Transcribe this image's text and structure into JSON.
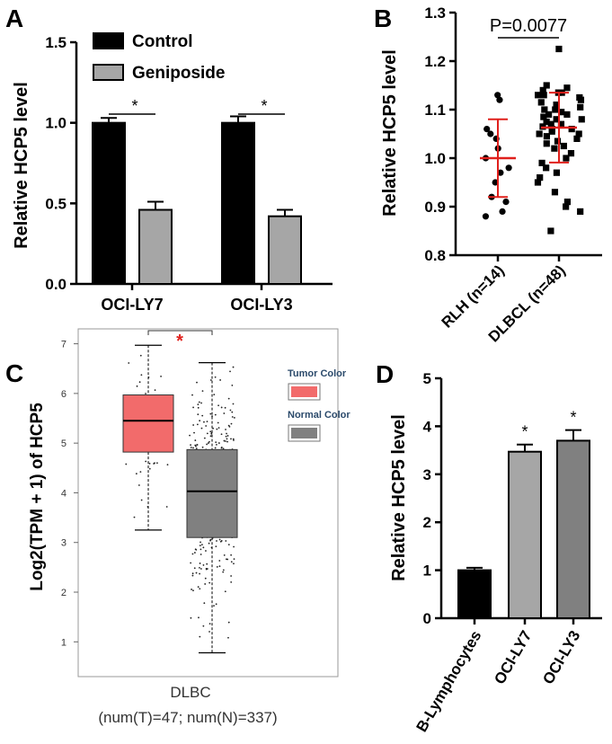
{
  "figure": {
    "panel_labels": [
      "A",
      "B",
      "C",
      "D"
    ]
  },
  "chart_data": [
    {
      "panel": "A",
      "type": "bar",
      "ylabel": "Relative HCP5 level",
      "ylim": [
        0,
        1.5
      ],
      "yticks": [
        "0.0",
        "0.5",
        "1.0",
        "1.5"
      ],
      "categories": [
        "OCI-LY7",
        "OCI-LY3"
      ],
      "series": [
        {
          "name": "Control",
          "values": [
            1.0,
            1.0
          ],
          "errors": [
            0.03,
            0.04
          ],
          "color": "#000000"
        },
        {
          "name": "Geniposide",
          "values": [
            0.46,
            0.42
          ],
          "errors": [
            0.05,
            0.04
          ],
          "color": "#a6a6a6"
        }
      ],
      "significance": [
        "*",
        "*"
      ],
      "legend_position": "top"
    },
    {
      "panel": "B",
      "type": "scatter",
      "ylabel": "Relative HCP5 level",
      "ylim": [
        0.8,
        1.3
      ],
      "yticks": [
        "0.8",
        "0.9",
        "1.0",
        "1.1",
        "1.2",
        "1.3"
      ],
      "categories": [
        "RLH (n=14)",
        "DLBCL (n=48)"
      ],
      "pvalue": "P=0.0077",
      "mean": [
        1.0,
        1.063
      ],
      "sd": [
        0.08,
        0.072
      ],
      "mean_color": "#e0201c",
      "groups": [
        {
          "name": "RLH",
          "marker": "circle",
          "values": [
            1.13,
            1.12,
            1.06,
            1.05,
            1.04,
            1.02,
            1.0,
            0.98,
            0.97,
            0.95,
            0.92,
            0.91,
            0.89,
            0.88
          ]
        },
        {
          "name": "DLBCL",
          "marker": "square",
          "values": [
            1.225,
            1.15,
            1.145,
            1.14,
            1.135,
            1.135,
            1.13,
            1.13,
            1.125,
            1.12,
            1.115,
            1.11,
            1.105,
            1.1,
            1.1,
            1.095,
            1.09,
            1.09,
            1.085,
            1.08,
            1.08,
            1.075,
            1.07,
            1.07,
            1.065,
            1.06,
            1.06,
            1.055,
            1.05,
            1.05,
            1.045,
            1.04,
            1.035,
            1.03,
            1.025,
            1.02,
            1.01,
            1.0,
            0.99,
            0.98,
            0.97,
            0.96,
            0.95,
            0.93,
            0.91,
            0.9,
            0.89,
            0.85
          ]
        }
      ]
    },
    {
      "panel": "C",
      "type": "box",
      "ylabel": "Log2(TPM + 1) of HCP5",
      "ylim": [
        0.3,
        7.3
      ],
      "yticks": [
        "1",
        "2",
        "3",
        "4",
        "5",
        "6",
        "7"
      ],
      "xlabel": "DLBC",
      "caption": "(num(T)=47; num(N)=337)",
      "significance": "*",
      "significance_color": "#e0201c",
      "legend": [
        {
          "label": "Tumor Color",
          "color": "#f26b6b"
        },
        {
          "label": "Normal Color",
          "color": "#808080"
        }
      ],
      "boxes": [
        {
          "name": "Tumor",
          "n": 47,
          "whisker_low": 3.25,
          "q1": 4.82,
          "median": 5.45,
          "q3": 5.97,
          "whisker_high": 6.97,
          "color": "#f26b6b"
        },
        {
          "name": "Normal",
          "n": 337,
          "whisker_low": 0.78,
          "q1": 3.1,
          "median": 4.03,
          "q3": 4.87,
          "whisker_high": 6.62,
          "color": "#808080"
        }
      ]
    },
    {
      "panel": "D",
      "type": "bar",
      "ylabel": "Relative HCP5 level",
      "ylim": [
        0,
        5
      ],
      "yticks": [
        "0",
        "1",
        "2",
        "3",
        "4",
        "5"
      ],
      "categories": [
        "B-Lymphocytes",
        "OCI-LY7",
        "OCI-LY3"
      ],
      "values": [
        1.0,
        3.47,
        3.7
      ],
      "errors": [
        0.05,
        0.15,
        0.22
      ],
      "colors": [
        "#000000",
        "#a6a6a6",
        "#808080"
      ],
      "significance": [
        "",
        "*",
        "*"
      ]
    }
  ]
}
